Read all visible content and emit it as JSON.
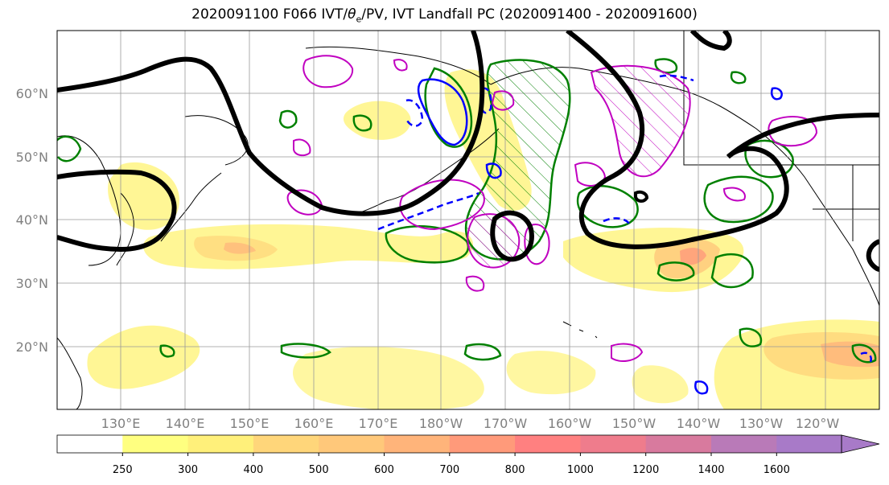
{
  "title": {
    "prefix": "2020091100 F066 IVT/",
    "theta": "θ",
    "theta_sub": "e",
    "suffix": "/PV, IVT Landfall PC (2020091400 - 2020091600)"
  },
  "lat_labels": [
    "60°N",
    "50°N",
    "40°N",
    "30°N",
    "20°N"
  ],
  "lon_labels": [
    "130°E",
    "140°E",
    "150°E",
    "160°E",
    "170°E",
    "180°W",
    "170°W",
    "160°W",
    "150°W",
    "140°W",
    "130°W",
    "120°W"
  ],
  "colorbar": {
    "ticks": [
      "250",
      "300",
      "400",
      "500",
      "600",
      "700",
      "800",
      "1000",
      "1200",
      "1400",
      "1600"
    ],
    "colors": [
      "#ffffff",
      "#ffff80",
      "#fff07a",
      "#ffd67a",
      "#ffc87a",
      "#ffb47a",
      "#ff9a7a",
      "#ff8080",
      "#ef7c8c",
      "#d87a9e",
      "#b97ab8",
      "#a87ac8"
    ]
  },
  "legend_colors": {
    "height_contour": "#000000",
    "theta_e": "#008000",
    "pv": "#c000c0",
    "ivt_pc": "#0000ff"
  }
}
